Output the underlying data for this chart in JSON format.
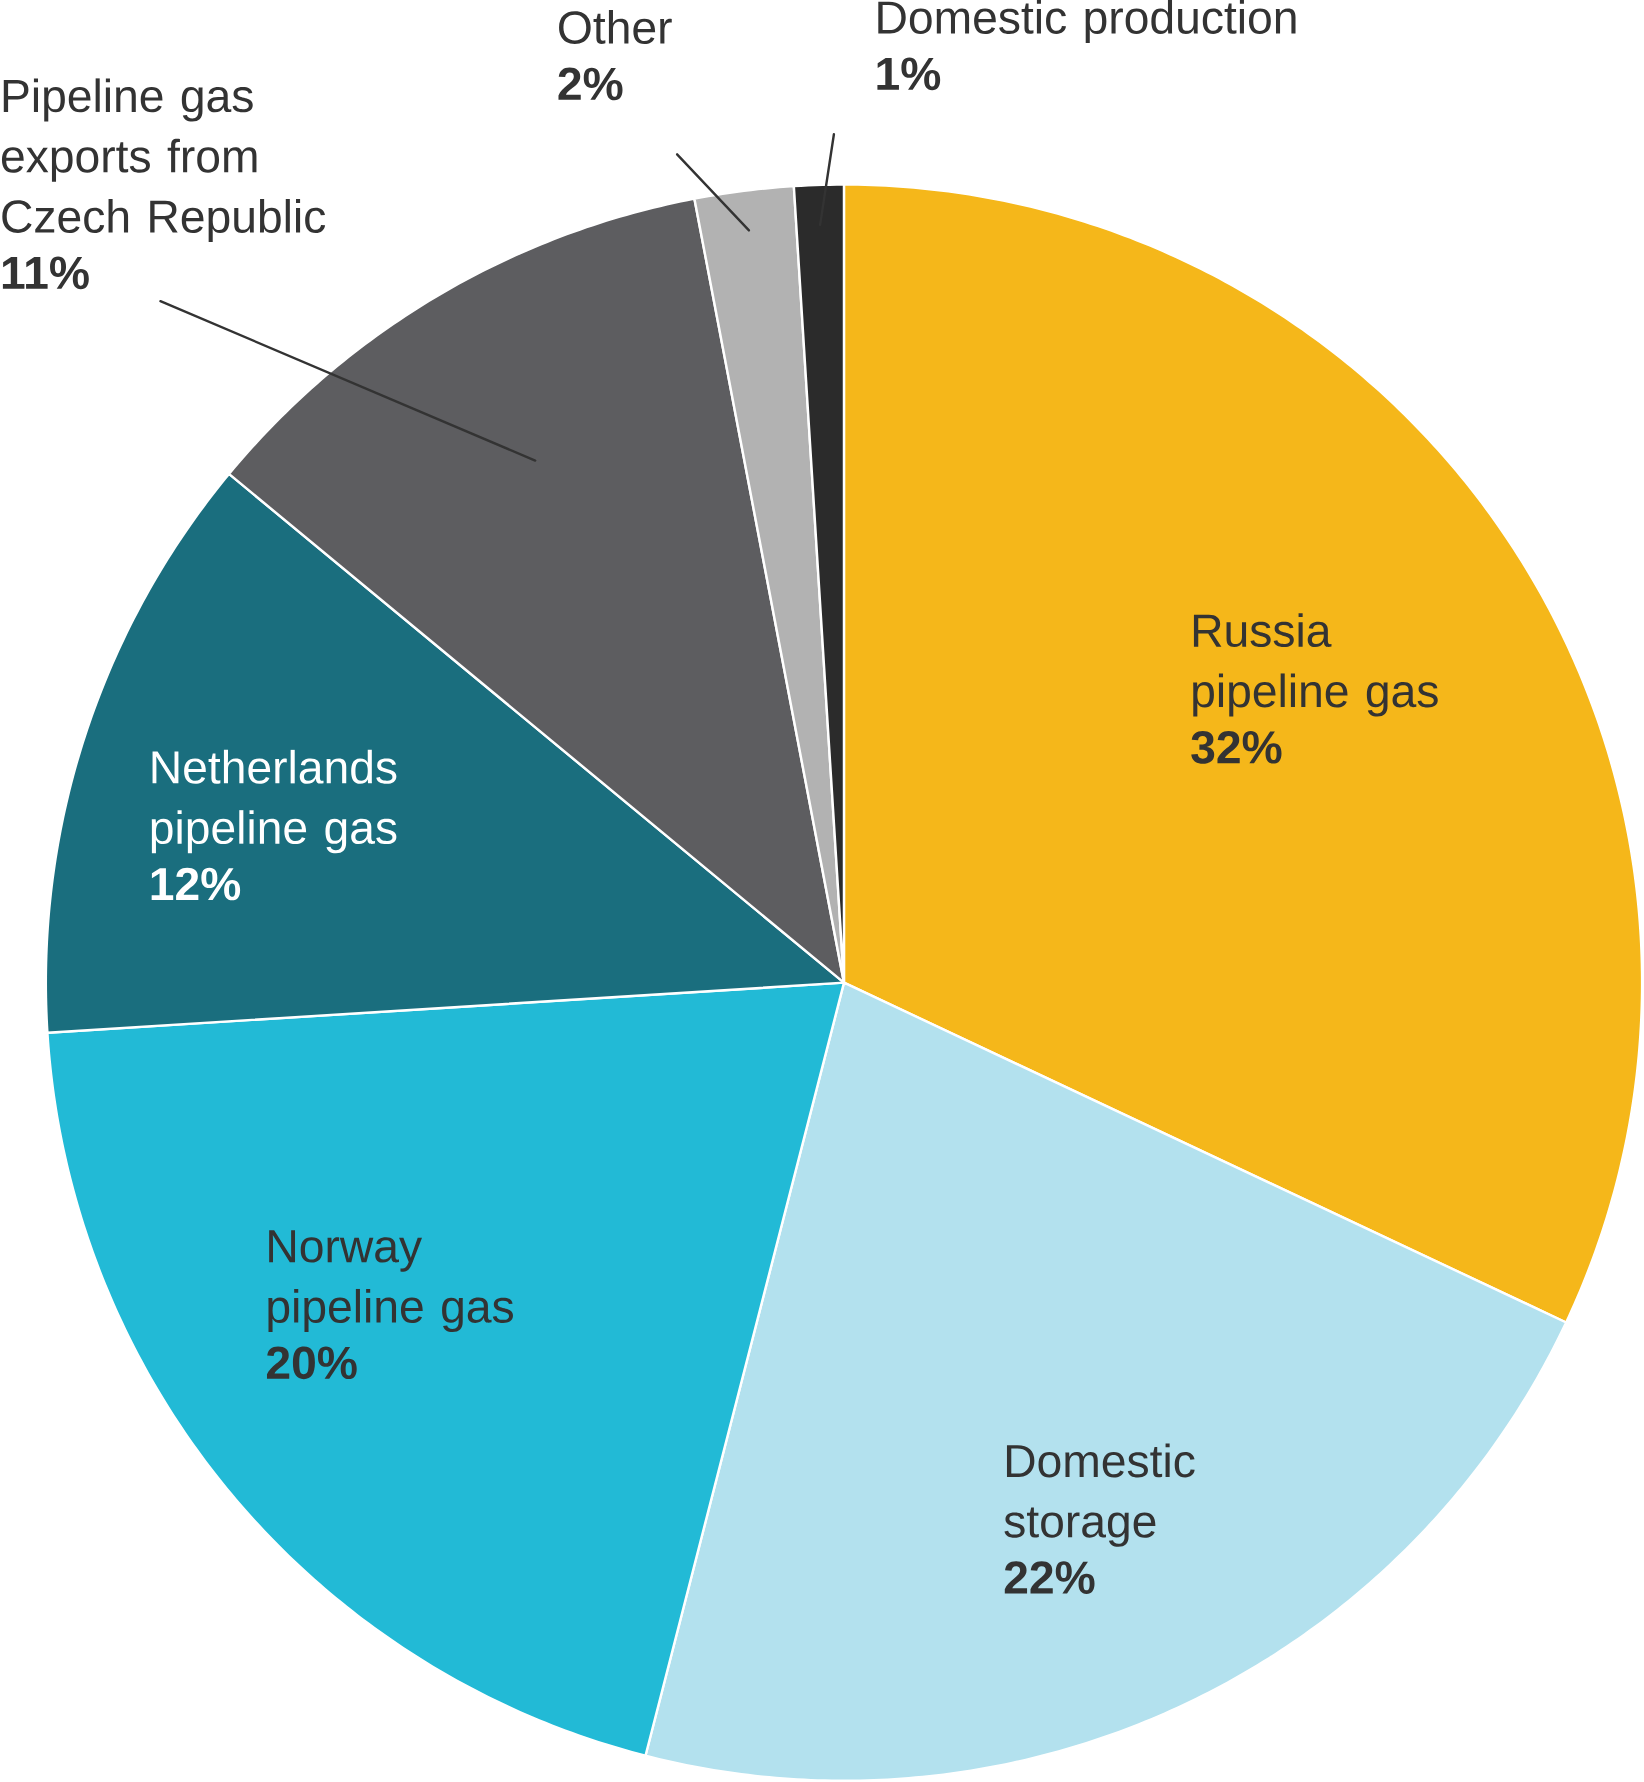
{
  "chart_data": {
    "type": "pie",
    "categories": [
      "Russia pipeline gas",
      "Domestic storage",
      "Norway pipeline gas",
      "Netherlands pipeline gas",
      "Pipeline gas exports from Czech Republic",
      "Other",
      "Domestic production"
    ],
    "values": [
      32,
      22,
      20,
      12,
      11,
      2,
      1
    ],
    "colors": [
      "#f5b71a",
      "#b3e1ee",
      "#22bad6",
      "#1a6e7e",
      "#5d5d60",
      "#b2b2b2",
      "#2b2b2b"
    ],
    "value_labels": [
      "32%",
      "22%",
      "20%",
      "12%",
      "11%",
      "2%",
      "1%"
    ]
  }
}
